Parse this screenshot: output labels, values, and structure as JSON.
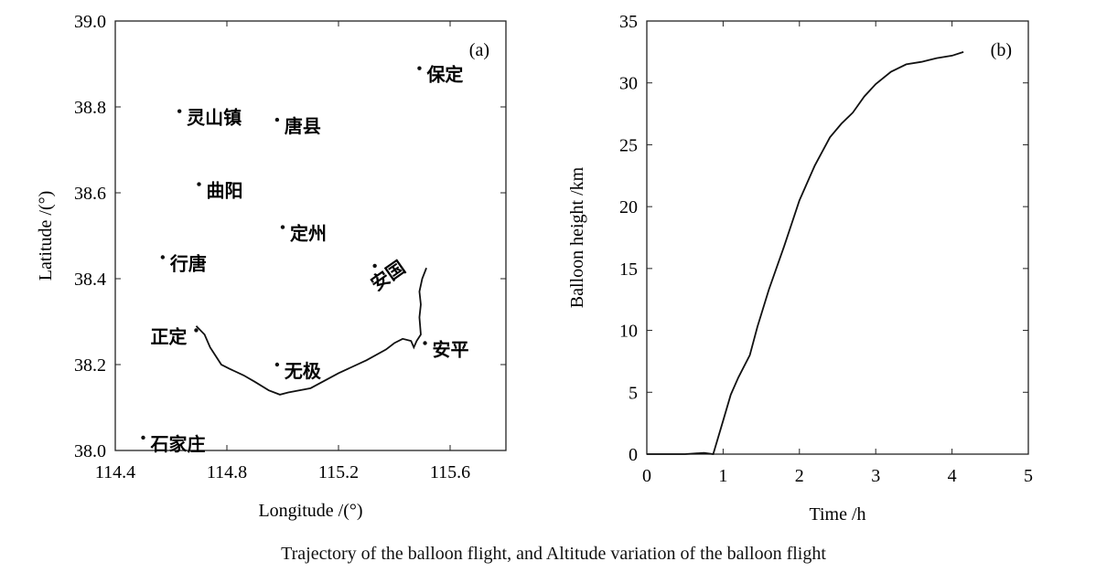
{
  "caption": "Trajectory of the balloon flight, and  Altitude variation of the balloon flight",
  "chart_data": [
    {
      "type": "scatter",
      "panel_label": "(a)",
      "xlabel": "Longitude /(°)",
      "ylabel": "Latitude /(°)",
      "xlim": [
        114.4,
        115.8
      ],
      "ylim": [
        38.0,
        39.0
      ],
      "xticks": [
        "114.4",
        "114.8",
        "115.2",
        "115.6"
      ],
      "yticks": [
        "38.0",
        "38.2",
        "38.4",
        "38.6",
        "38.8",
        "39.0"
      ],
      "cities": [
        {
          "name": "保定",
          "lon": 115.49,
          "lat": 38.89
        },
        {
          "name": "灵山镇",
          "lon": 114.63,
          "lat": 38.79
        },
        {
          "name": "唐县",
          "lon": 114.98,
          "lat": 38.77
        },
        {
          "name": "曲阳",
          "lon": 114.7,
          "lat": 38.62
        },
        {
          "name": "定州",
          "lon": 115.0,
          "lat": 38.52
        },
        {
          "name": "行唐",
          "lon": 114.57,
          "lat": 38.45
        },
        {
          "name": "安国",
          "lon": 115.33,
          "lat": 38.43
        },
        {
          "name": "正定",
          "lon": 114.69,
          "lat": 38.28
        },
        {
          "name": "无极",
          "lon": 114.98,
          "lat": 38.2
        },
        {
          "name": "安平",
          "lon": 115.51,
          "lat": 38.25
        },
        {
          "name": "石家庄",
          "lon": 114.5,
          "lat": 38.03
        }
      ],
      "trajectory": {
        "lon": [
          114.69,
          114.72,
          114.74,
          114.78,
          114.81,
          114.86,
          114.9,
          114.95,
          114.99,
          115.02,
          115.1,
          115.2,
          115.3,
          115.37,
          115.4,
          115.43,
          115.46,
          115.47,
          115.48,
          115.495,
          115.49,
          115.495,
          115.49,
          115.5,
          115.515
        ],
        "lat": [
          38.29,
          38.27,
          38.24,
          38.2,
          38.19,
          38.175,
          38.16,
          38.14,
          38.13,
          38.135,
          38.145,
          38.18,
          38.21,
          38.235,
          38.25,
          38.26,
          38.255,
          38.24,
          38.255,
          38.27,
          38.31,
          38.34,
          38.37,
          38.4,
          38.425
        ]
      }
    },
    {
      "type": "line",
      "panel_label": "(b)",
      "xlabel": "Time /h",
      "ylabel": "Balloon height /km",
      "xlim": [
        0,
        5
      ],
      "ylim": [
        0,
        35
      ],
      "xticks": [
        "0",
        "1",
        "2",
        "3",
        "4",
        "5"
      ],
      "yticks": [
        "0",
        "5",
        "10",
        "15",
        "20",
        "25",
        "30",
        "35"
      ],
      "x": [
        0,
        0.5,
        0.75,
        0.87,
        1.0,
        1.1,
        1.2,
        1.35,
        1.45,
        1.6,
        1.8,
        2.0,
        2.2,
        2.4,
        2.55,
        2.7,
        2.85,
        3.0,
        3.2,
        3.4,
        3.6,
        3.8,
        4.0,
        4.15
      ],
      "y": [
        0,
        0,
        0.1,
        0,
        2.7,
        4.8,
        6.2,
        8.0,
        10.3,
        13.3,
        16.8,
        20.5,
        23.3,
        25.6,
        26.7,
        27.6,
        28.9,
        29.9,
        30.9,
        31.5,
        31.7,
        32.0,
        32.2,
        32.5
      ]
    }
  ]
}
